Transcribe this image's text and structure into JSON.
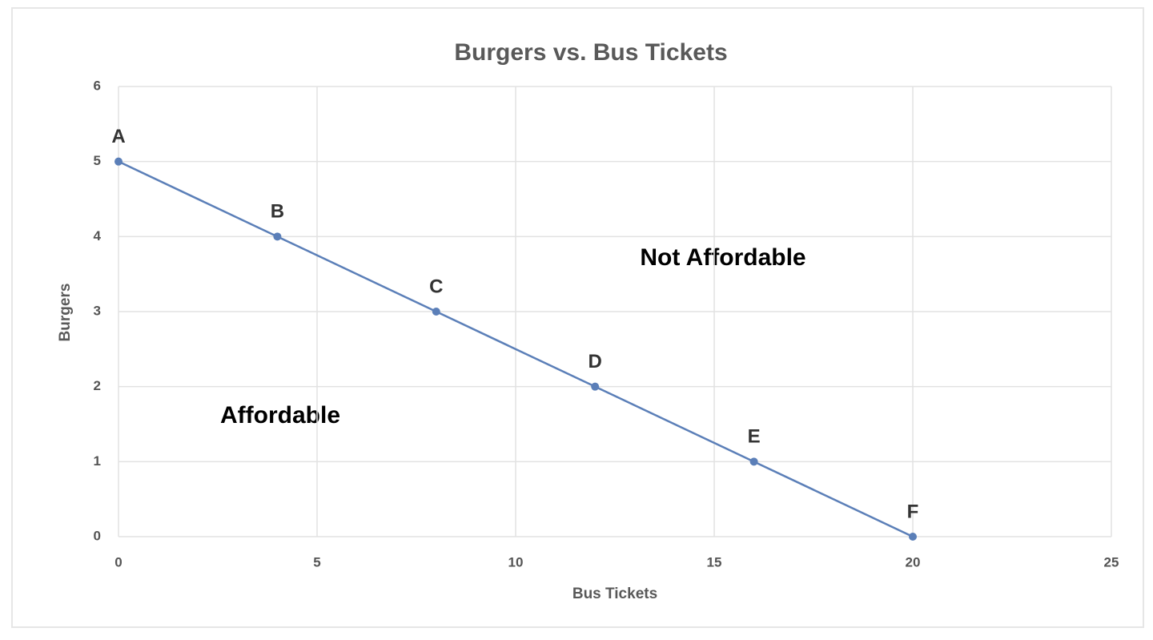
{
  "chart_data": {
    "type": "line",
    "title": "Burgers vs. Bus Tickets",
    "x_label": "Bus Tickets",
    "y_label": "Burgers",
    "x": [
      0,
      4,
      8,
      12,
      16,
      20
    ],
    "series": [
      {
        "values": [
          5,
          4,
          3,
          2,
          1,
          0
        ],
        "labels": [
          "A",
          "B",
          "C",
          "D",
          "E",
          "F"
        ],
        "color": "#5b7fb8"
      }
    ],
    "xlim": [
      0,
      25
    ],
    "xticks": [
      0,
      5,
      10,
      15,
      20,
      25
    ],
    "ylim": [
      0,
      6
    ],
    "yticks": [
      0,
      1,
      2,
      3,
      4,
      5,
      6
    ],
    "grid": true,
    "annotations": [
      "Not Affordable",
      "Affordable"
    ]
  }
}
